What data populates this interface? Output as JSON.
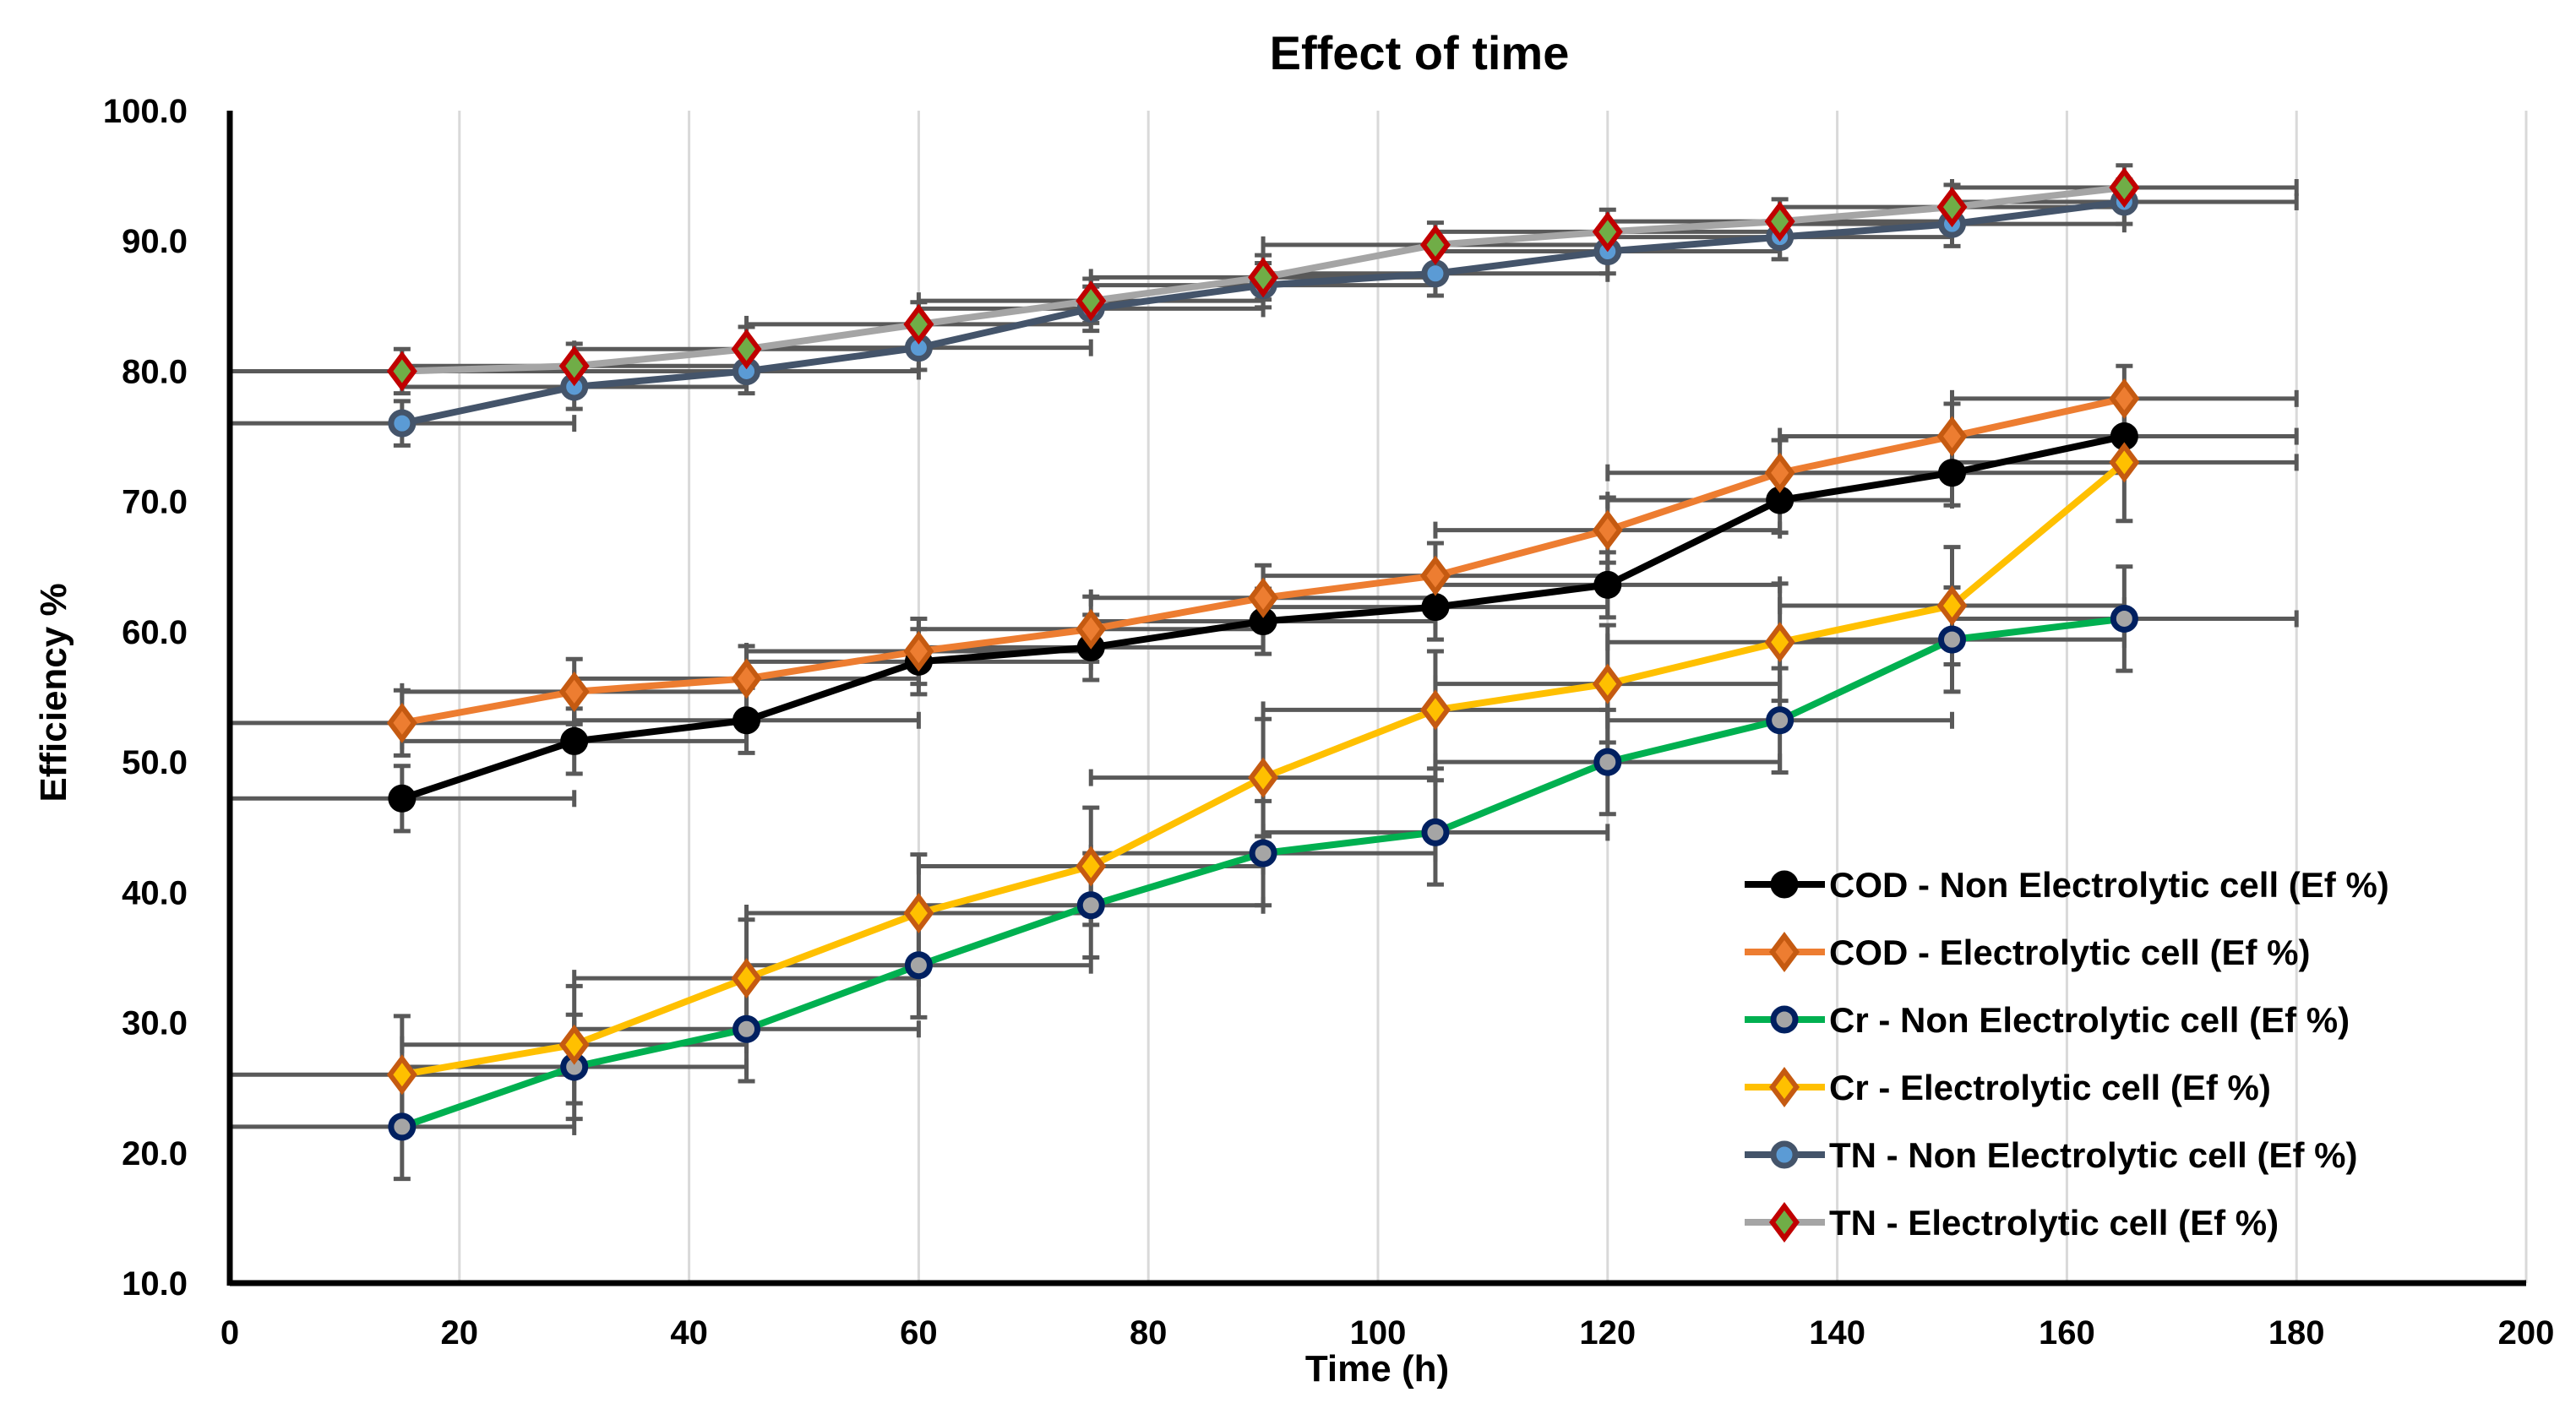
{
  "chart_data": {
    "type": "line",
    "title": "Effect of time",
    "xlabel": "Time (h)",
    "ylabel": "Efficiency %",
    "xlim": [
      0,
      200
    ],
    "ylim": [
      10,
      100
    ],
    "xticks": [
      "0",
      "20",
      "40",
      "60",
      "80",
      "100",
      "120",
      "140",
      "160",
      "180",
      "200"
    ],
    "yticks": [
      "10.0",
      "20.0",
      "30.0",
      "40.0",
      "50.0",
      "60.0",
      "70.0",
      "80.0",
      "90.0",
      "100.0"
    ],
    "grid": "vertical",
    "legend_position": "bottom-right",
    "x": [
      15,
      30,
      45,
      60,
      75,
      90,
      105,
      120,
      135,
      150,
      165
    ],
    "x_error": 15,
    "series": [
      {
        "name": "COD - Non Electrolytic cell (Ef %)",
        "color": "#000000",
        "marker": "circle",
        "marker_fill": "#000000",
        "marker_edge": "#000000",
        "values": [
          47.2,
          51.6,
          53.2,
          57.7,
          58.8,
          60.8,
          61.9,
          63.6,
          70.1,
          72.2,
          75.0
        ],
        "y_error": 2.5
      },
      {
        "name": "COD -  Electrolytic cell (Ef %)",
        "color": "#ED7D31",
        "marker": "diamond",
        "marker_fill": "#ED7D31",
        "marker_edge": "#C55A11",
        "values": [
          53.0,
          55.4,
          56.4,
          58.5,
          60.2,
          62.6,
          64.3,
          67.8,
          72.2,
          75.0,
          77.9
        ],
        "y_error": 2.5
      },
      {
        "name": "Cr -  Non Electrolytic cell (Ef %)",
        "color": "#00B050",
        "marker": "circle",
        "marker_fill": "#A5A5A5",
        "marker_edge": "#002060",
        "values": [
          22.0,
          26.6,
          29.5,
          34.4,
          39.0,
          43.0,
          44.6,
          50.0,
          53.2,
          59.4,
          61.0
        ],
        "y_error": 4.0
      },
      {
        "name": "Cr -  Electrolytic cell (Ef %)",
        "color": "#FFC000",
        "marker": "diamond",
        "marker_fill": "#FFC000",
        "marker_edge": "#C55A11",
        "values": [
          26.0,
          28.3,
          33.4,
          38.4,
          42.0,
          48.8,
          54.0,
          56.0,
          59.2,
          62.0,
          73.0
        ],
        "y_error": 4.5
      },
      {
        "name": "TN - Non Electrolytic cell (Ef %)",
        "color": "#44546A",
        "marker": "circle",
        "marker_fill": "#5B9BD5",
        "marker_edge": "#44546A",
        "values": [
          76.0,
          78.8,
          80.0,
          81.8,
          84.8,
          86.6,
          87.5,
          89.2,
          90.3,
          91.3,
          93.0
        ],
        "y_error": 1.7
      },
      {
        "name": "TN -  Electrolytic cell (Ef %)",
        "color": "#A5A5A5",
        "marker": "diamond",
        "marker_fill": "#70AD47",
        "marker_edge": "#C00000",
        "values": [
          80.0,
          80.4,
          81.7,
          83.6,
          85.4,
          87.2,
          89.7,
          90.7,
          91.5,
          92.6,
          94.1
        ],
        "y_error": 1.7
      }
    ]
  }
}
